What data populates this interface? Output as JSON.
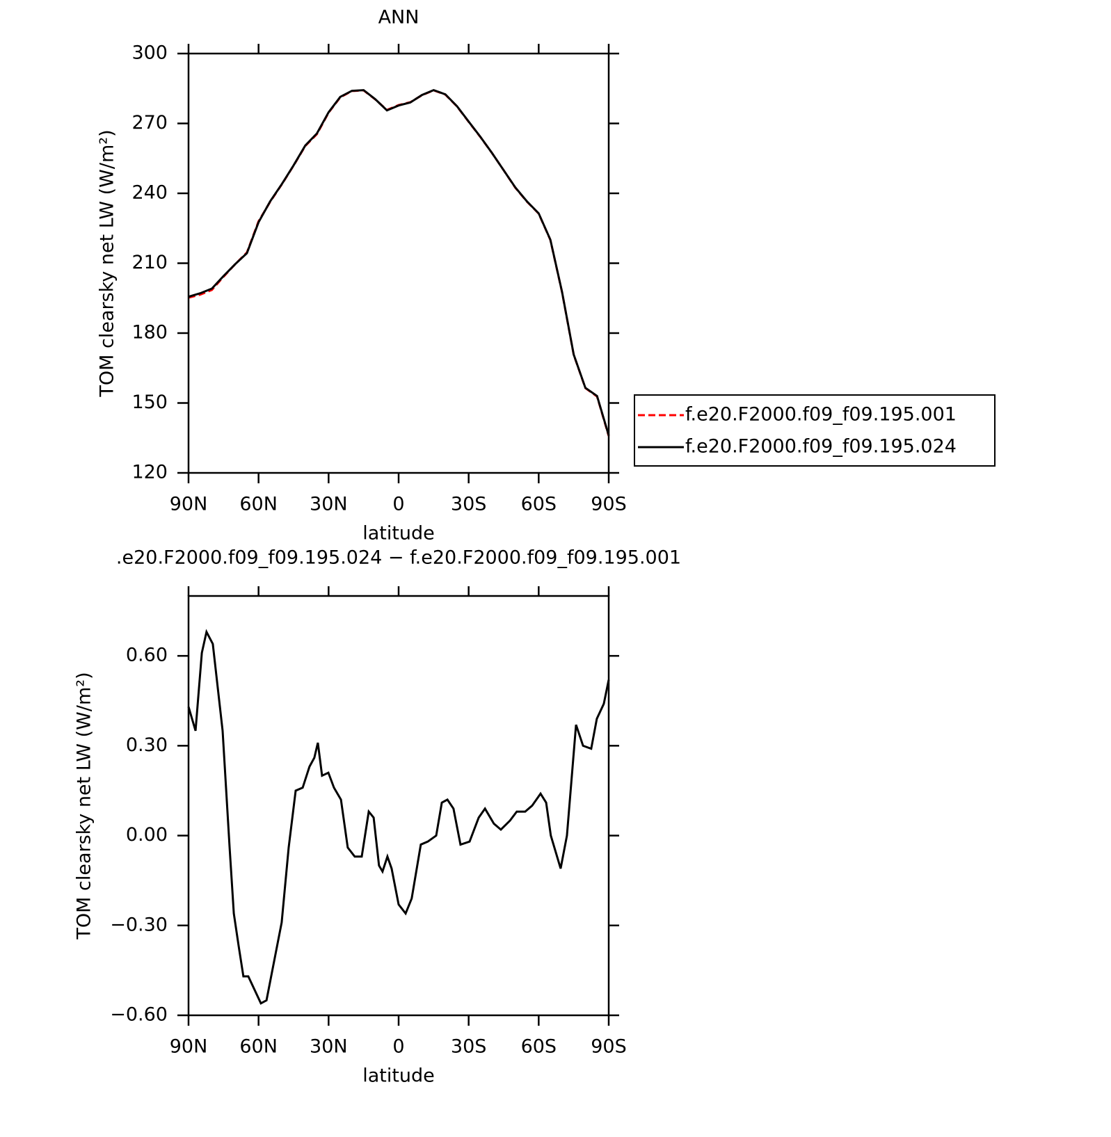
{
  "chart_data": [
    {
      "type": "line",
      "title": "ANN",
      "y_label": "TOM clearsky net LW (W/m²)",
      "x_label": "latitude",
      "x": [
        90,
        85,
        80,
        75,
        70,
        65,
        60,
        55,
        50,
        45,
        40,
        35,
        30,
        25,
        20,
        15,
        10,
        5,
        0,
        -5,
        -10,
        -15,
        -20,
        -25,
        -30,
        -35,
        -40,
        -45,
        -50,
        -55,
        -60,
        -65,
        -70,
        -75,
        -80,
        -85,
        -90
      ],
      "series": [
        {
          "name": "f.e20.F2000.f09_f09.195.001",
          "color": "#ff0000",
          "line_style": "dashed",
          "values": [
            195.2,
            196.5,
            198.5,
            204.2,
            209.6,
            214.6,
            228,
            236.4,
            243.9,
            251.9,
            260.3,
            265.4,
            274.6,
            281.2,
            283.9,
            284.2,
            280.3,
            275.8,
            277.9,
            279.1,
            282.1,
            284.2,
            282.4,
            277.3,
            270.7,
            264.2,
            257.3,
            249.9,
            242.4,
            236.4,
            231.3,
            220,
            197.6,
            170.7,
            156.4,
            152.8,
            135.8
          ]
        },
        {
          "name": "f.e20.F2000.f09_f09.195.024",
          "color": "#000000",
          "line_style": "solid",
          "values": [
            195.6,
            197.1,
            199.1,
            204.5,
            209.6,
            214.3,
            227.6,
            236.6,
            244,
            252,
            260.5,
            265.7,
            274.8,
            281.4,
            284,
            284.3,
            280.4,
            275.6,
            277.7,
            279,
            282.2,
            284.3,
            282.5,
            277.4,
            270.8,
            264.3,
            257.3,
            249.9,
            242.5,
            236.5,
            231.4,
            220.1,
            197.7,
            170.8,
            156.5,
            153,
            136.1
          ]
        }
      ],
      "xlim": [
        90,
        -90
      ],
      "xticks": [
        {
          "value": 90,
          "label": "90N"
        },
        {
          "value": 60,
          "label": "60N"
        },
        {
          "value": 30,
          "label": "30N"
        },
        0,
        {
          "value": -30,
          "label": "30S"
        },
        {
          "value": -60,
          "label": "60S"
        },
        {
          "value": -90,
          "label": "90S"
        }
      ],
      "ylim": [
        120,
        300
      ],
      "yticks": [
        120,
        150,
        180,
        210,
        240,
        270,
        300
      ],
      "legend": "right"
    },
    {
      "type": "line",
      "title": ".e20.F2000.f09_f09.195.024 − f.e20.F2000.f09_f09.195.001",
      "y_label": "TOM clearsky net LW (W/m²)",
      "x_label": "latitude",
      "x": [
        90,
        87,
        84.3,
        82.3,
        79.6,
        75.4,
        72.4,
        70.6,
        68.5,
        66.5,
        64.4,
        62,
        59,
        56.6,
        53.6,
        50.1,
        47.1,
        44.1,
        41.1,
        38.2,
        36.1,
        34.6,
        32.8,
        30.1,
        27.7,
        24.7,
        21.8,
        18.8,
        15.8,
        12.8,
        10.7,
        8.4,
        6.9,
        4.8,
        3,
        0,
        -3,
        -5.6,
        -9.5,
        -12.5,
        -16.1,
        -18.5,
        -20.9,
        -23.5,
        -26.5,
        -30.4,
        -34.3,
        -37,
        -40.8,
        -43.8,
        -47.7,
        -50.6,
        -54.2,
        -57.2,
        -60.8,
        -63.2,
        -65.2,
        -69.4,
        -72.1,
        -76,
        -79,
        -82.5,
        -84.9,
        -87.9,
        -90
      ],
      "values": [
        0.43,
        0.35,
        0.61,
        0.68,
        0.64,
        0.35,
        -0.04,
        -0.26,
        -0.37,
        -0.47,
        -0.47,
        -0.51,
        -0.56,
        -0.55,
        -0.43,
        -0.29,
        -0.04,
        0.15,
        0.16,
        0.23,
        0.26,
        0.31,
        0.2,
        0.21,
        0.16,
        0.12,
        -0.04,
        -0.07,
        -0.07,
        0.08,
        0.06,
        -0.1,
        -0.12,
        -0.07,
        -0.11,
        -0.23,
        -0.26,
        -0.21,
        -0.03,
        -0.02,
        0,
        0.11,
        0.12,
        0.09,
        -0.03,
        -0.02,
        0.06,
        0.09,
        0.04,
        0.02,
        0.05,
        0.08,
        0.08,
        0.1,
        0.14,
        0.11,
        0,
        -0.11,
        0,
        0.37,
        0.3,
        0.29,
        0.39,
        0.44,
        0.52
      ],
      "color": "#000000",
      "xlim": [
        90,
        -90
      ],
      "xticks": [
        {
          "value": 90,
          "label": "90N"
        },
        {
          "value": 60,
          "label": "60N"
        },
        {
          "value": 30,
          "label": "30N"
        },
        0,
        {
          "value": -30,
          "label": "30S"
        },
        {
          "value": -60,
          "label": "60S"
        },
        {
          "value": -90,
          "label": "90S"
        }
      ],
      "ylim": [
        -0.6,
        0.8
      ],
      "yticks": [
        {
          "value": -0.6,
          "label": "−0.60"
        },
        {
          "value": -0.3,
          "label": "−0.30"
        },
        {
          "value": 0,
          "label": "0.00"
        },
        {
          "value": 0.3,
          "label": "0.30"
        },
        {
          "value": 0.6,
          "label": "0.60"
        }
      ]
    }
  ]
}
